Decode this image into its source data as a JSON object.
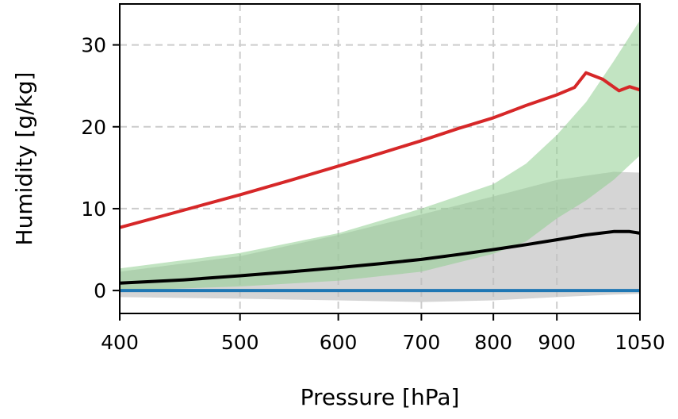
{
  "chart_data": {
    "type": "line",
    "xlabel": "Pressure [hPa]",
    "ylabel": "Humidity [g/kg]",
    "x_scale": "log",
    "xlim": [
      400,
      1050
    ],
    "ylim": [
      -2.8,
      35
    ],
    "x_ticks": [
      400,
      500,
      600,
      700,
      800,
      900,
      1050
    ],
    "x_tick_labels": [
      "400",
      "500",
      "600",
      "700",
      "800",
      "900",
      "1050"
    ],
    "y_ticks": [
      0,
      10,
      20,
      30
    ],
    "y_tick_labels": [
      "0",
      "10",
      "20",
      "30"
    ],
    "grid": true,
    "bands": [
      {
        "color": "#bfbfbf",
        "opacity": 0.65,
        "x": [
          400,
          500,
          600,
          700,
          800,
          900,
          1000,
          1050
        ],
        "lower": [
          -0.8,
          -1.0,
          -1.2,
          -1.4,
          -1.2,
          -0.8,
          -0.5,
          -0.4
        ],
        "upper": [
          2.3,
          4.2,
          6.8,
          9.3,
          11.5,
          13.5,
          14.5,
          14.4
        ]
      },
      {
        "color": "#8fce8f",
        "opacity": 0.55,
        "x": [
          400,
          500,
          600,
          700,
          800,
          850,
          900,
          950,
          1000,
          1050
        ],
        "lower": [
          0.0,
          0.5,
          1.2,
          2.3,
          4.5,
          6.0,
          8.8,
          11.0,
          13.5,
          16.5
        ],
        "upper": [
          2.7,
          4.6,
          7.0,
          10.0,
          13.0,
          15.5,
          19.0,
          23.0,
          28.0,
          33.0
        ]
      }
    ],
    "series": [
      {
        "color": "#1f77b4",
        "x": [
          400,
          1050
        ],
        "values": [
          0.0,
          0.0
        ]
      },
      {
        "color": "#000000",
        "x": [
          400,
          450,
          500,
          550,
          600,
          650,
          700,
          750,
          800,
          850,
          900,
          950,
          1000,
          1030,
          1050
        ],
        "values": [
          0.9,
          1.3,
          1.8,
          2.3,
          2.8,
          3.3,
          3.8,
          4.4,
          5.0,
          5.6,
          6.2,
          6.8,
          7.2,
          7.2,
          7.0
        ]
      },
      {
        "color": "#d62728",
        "x": [
          400,
          450,
          500,
          550,
          600,
          650,
          700,
          750,
          800,
          850,
          900,
          930,
          950,
          980,
          1010,
          1030,
          1050
        ],
        "values": [
          7.7,
          9.8,
          11.7,
          13.5,
          15.2,
          16.8,
          18.3,
          19.8,
          21.1,
          22.6,
          23.9,
          24.8,
          26.6,
          25.8,
          24.4,
          24.9,
          24.5
        ]
      }
    ]
  }
}
